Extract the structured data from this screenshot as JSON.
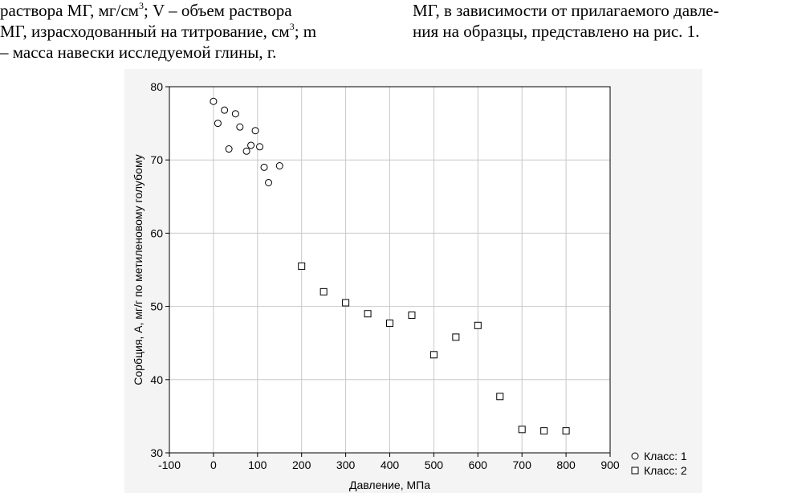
{
  "text": {
    "left": {
      "l1a": "раствора МГ, мг/см",
      "l1sup": "3",
      "l1b": "; V – объем раствора",
      "l2a": "МГ, израсходованный на титрование, см",
      "l2sup": "3",
      "l2b": "; m",
      "l3": "– масса навески исследуемой глины, г."
    },
    "right": {
      "l1": "МГ, в зависимости от прилагаемого давле-",
      "l2": "ния на образцы, представлено на рис. 1."
    }
  },
  "chart_data": {
    "type": "scatter",
    "xlabel": "Давление, МПа",
    "ylabel": "Сорбция, А, мг/г по метиленовому голубому",
    "xlim": [
      -100,
      900
    ],
    "ylim": [
      30,
      80
    ],
    "xticks": [
      -100,
      0,
      100,
      200,
      300,
      400,
      500,
      600,
      700,
      800,
      900
    ],
    "yticks": [
      30,
      40,
      50,
      60,
      70,
      80
    ],
    "grid": true,
    "legend_position": "bottom-right",
    "series": [
      {
        "name": "Класс: 1",
        "marker": "circle",
        "points": [
          [
            0,
            78.0
          ],
          [
            10,
            75.0
          ],
          [
            25,
            76.8
          ],
          [
            35,
            71.5
          ],
          [
            50,
            76.3
          ],
          [
            60,
            74.5
          ],
          [
            75,
            71.2
          ],
          [
            85,
            72.0
          ],
          [
            95,
            74.0
          ],
          [
            105,
            71.8
          ],
          [
            115,
            69.0
          ],
          [
            125,
            66.9
          ],
          [
            150,
            69.2
          ]
        ]
      },
      {
        "name": "Класс: 2",
        "marker": "square",
        "points": [
          [
            200,
            55.5
          ],
          [
            250,
            52.0
          ],
          [
            300,
            50.5
          ],
          [
            350,
            49.0
          ],
          [
            400,
            47.7
          ],
          [
            450,
            48.8
          ],
          [
            500,
            43.4
          ],
          [
            550,
            45.8
          ],
          [
            600,
            47.4
          ],
          [
            650,
            37.7
          ],
          [
            700,
            33.2
          ],
          [
            750,
            33.0
          ],
          [
            800,
            33.0
          ]
        ]
      }
    ]
  }
}
